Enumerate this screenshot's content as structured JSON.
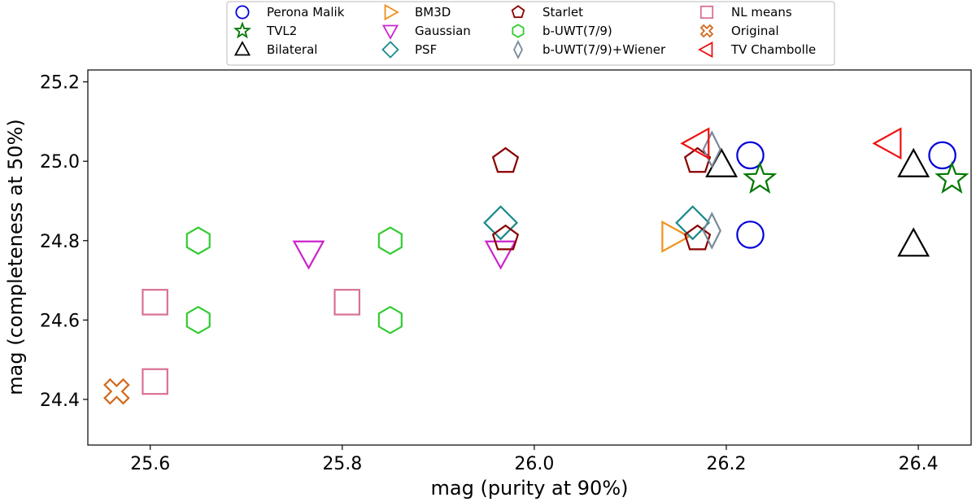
{
  "chart_data": {
    "type": "scatter",
    "title": "",
    "xlabel": "mag (purity at 90%)",
    "ylabel": "mag (completeness at 50%)",
    "xlim": [
      25.535,
      26.455
    ],
    "ylim": [
      24.285,
      25.23
    ],
    "xticks": [
      "25.6",
      "25.8",
      "26.0",
      "26.2",
      "26.4"
    ],
    "yticks": [
      "24.4",
      "24.6",
      "24.8",
      "25.0",
      "25.2"
    ],
    "grid": false,
    "legend_position": "top-center",
    "series": [
      {
        "name": "Perona Malik",
        "marker": "circle",
        "color": "#0000dd",
        "points": [
          [
            26.225,
            25.015
          ],
          [
            26.225,
            24.815
          ],
          [
            26.425,
            25.015
          ]
        ]
      },
      {
        "name": "TVL2",
        "marker": "star",
        "color": "#007700",
        "points": [
          [
            26.235,
            24.955
          ],
          [
            26.435,
            24.955
          ]
        ]
      },
      {
        "name": "Bilateral",
        "marker": "triangle-up",
        "color": "#000000",
        "points": [
          [
            26.195,
            24.99
          ],
          [
            26.395,
            24.99
          ],
          [
            26.395,
            24.79
          ]
        ]
      },
      {
        "name": "BM3D",
        "marker": "triangle-right",
        "color": "#f0901b",
        "points": [
          [
            26.145,
            24.81
          ]
        ]
      },
      {
        "name": "Gaussian",
        "marker": "triangle-down",
        "color": "#cc22cc",
        "points": [
          [
            25.765,
            24.77
          ],
          [
            25.965,
            24.77
          ]
        ]
      },
      {
        "name": "PSF",
        "marker": "diamond",
        "color": "#1a8a8a",
        "points": [
          [
            25.965,
            24.845
          ],
          [
            26.165,
            24.845
          ]
        ]
      },
      {
        "name": "Starlet",
        "marker": "pentagon",
        "color": "#880000",
        "points": [
          [
            25.97,
            25.0
          ],
          [
            25.97,
            24.805
          ],
          [
            26.17,
            25.0
          ],
          [
            26.17,
            24.805
          ]
        ]
      },
      {
        "name": "b-UWT(7/9)",
        "marker": "hexagon",
        "color": "#33cc33",
        "points": [
          [
            25.65,
            24.8
          ],
          [
            25.65,
            24.6
          ],
          [
            25.85,
            24.8
          ],
          [
            25.85,
            24.6
          ]
        ]
      },
      {
        "name": "b-UWT(7/9)+Wiener",
        "marker": "thin-diamond",
        "color": "#778899",
        "points": [
          [
            26.185,
            25.03
          ],
          [
            26.185,
            24.825
          ]
        ]
      },
      {
        "name": "NL means",
        "marker": "square",
        "color": "#d97095",
        "points": [
          [
            25.605,
            24.645
          ],
          [
            25.605,
            24.445
          ],
          [
            25.805,
            24.645
          ]
        ]
      },
      {
        "name": "Original",
        "marker": "x-cross",
        "color": "#d2691e",
        "points": [
          [
            25.565,
            24.42
          ]
        ]
      },
      {
        "name": "TV Chambolle",
        "marker": "triangle-left",
        "color": "#ee1111",
        "points": [
          [
            26.17,
            25.045
          ],
          [
            26.37,
            25.045
          ]
        ]
      }
    ]
  }
}
